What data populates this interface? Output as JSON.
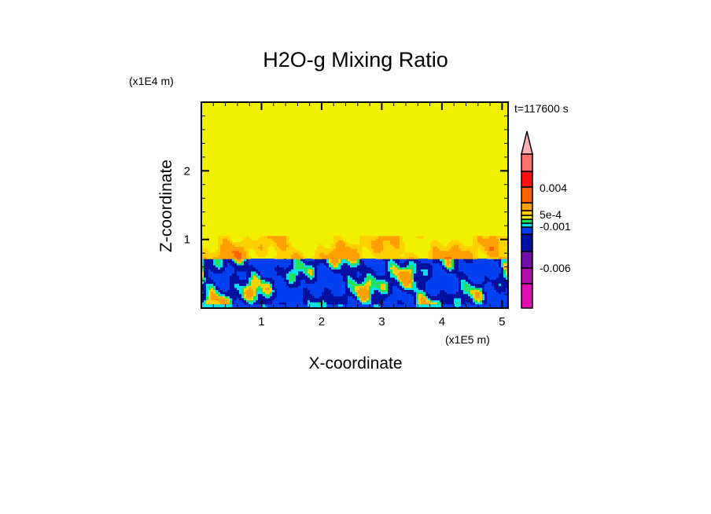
{
  "chart_data": {
    "type": "heatmap",
    "title": "H2O-g Mixing Ratio",
    "xlabel": "X-coordinate",
    "ylabel": "Z-coordinate",
    "x_unit_label": "(x1E5 m)",
    "y_unit_label": "(x1E4 m)",
    "time_label": "t=117600 s",
    "xlim": [
      0,
      5.1
    ],
    "ylim": [
      0,
      3.0
    ],
    "x_ticks": [
      "1",
      "2",
      "3",
      "4",
      "5"
    ],
    "x_tick_values": [
      1,
      2,
      3,
      4,
      5
    ],
    "y_ticks": [
      "1",
      "2"
    ],
    "y_tick_values": [
      1,
      2
    ],
    "field_description_levels": {
      "upper_uniform_z_above": 1.03,
      "mixed_layer_top": 0.72
    },
    "colorbar": {
      "labels": [
        "0.004",
        "5e-4",
        "-0.001",
        "-0.006"
      ],
      "colors_bottom_to_top": [
        "#e010b0",
        "#b010a8",
        "#7010a8",
        "#0010a0",
        "#0040f0",
        "#00e0f0",
        "#20e060",
        "#f0f000",
        "#ffd000",
        "#ffa000",
        "#ff6000",
        "#ff1010",
        "#ff7070"
      ],
      "extend_color": "#ffb0b0"
    }
  }
}
